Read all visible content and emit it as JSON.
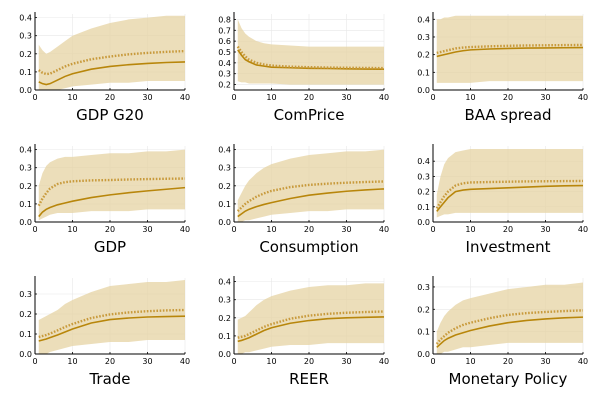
{
  "colors": {
    "band": "#e6d3a3",
    "median": "#b8860b",
    "dotted": "#c89a3c",
    "grid": "#e8e8e8",
    "axis": "#000000"
  },
  "chart_data": [
    {
      "type": "line",
      "title": "GDP G20",
      "xlim": [
        0,
        40
      ],
      "ylim": [
        0,
        0.42
      ],
      "xticks": [
        0,
        10,
        20,
        30,
        40
      ],
      "yticks": [
        0.0,
        0.1,
        0.2,
        0.3,
        0.4
      ],
      "ytick_labels": [
        "0.0",
        "0.1",
        "0.2",
        "0.3",
        "0.4"
      ],
      "x": [
        1,
        2,
        3,
        4,
        6,
        8,
        10,
        15,
        20,
        25,
        30,
        35,
        40
      ],
      "band_upper": [
        0.25,
        0.22,
        0.2,
        0.21,
        0.24,
        0.27,
        0.3,
        0.34,
        0.37,
        0.39,
        0.4,
        0.41,
        0.41
      ],
      "band_lower": [
        0.0,
        0.0,
        0.0,
        0.0,
        0.0,
        0.01,
        0.02,
        0.03,
        0.04,
        0.04,
        0.05,
        0.05,
        0.05
      ],
      "series": [
        {
          "style": "solid",
          "values": [
            0.045,
            0.035,
            0.03,
            0.035,
            0.055,
            0.075,
            0.09,
            0.115,
            0.13,
            0.14,
            0.147,
            0.152,
            0.155
          ]
        },
        {
          "style": "dotted",
          "values": [
            0.11,
            0.095,
            0.088,
            0.09,
            0.11,
            0.13,
            0.145,
            0.17,
            0.185,
            0.197,
            0.205,
            0.211,
            0.215
          ]
        }
      ]
    },
    {
      "type": "line",
      "title": "ComPrice",
      "xlim": [
        0,
        40
      ],
      "ylim": [
        0.15,
        0.85
      ],
      "xticks": [
        0,
        10,
        20,
        30,
        40
      ],
      "yticks": [
        0.2,
        0.3,
        0.4,
        0.5,
        0.6,
        0.7,
        0.8
      ],
      "ytick_labels": [
        "0.2",
        "0.3",
        "0.4",
        "0.5",
        "0.6",
        "0.7",
        "0.8"
      ],
      "x": [
        1,
        2,
        3,
        4,
        6,
        8,
        10,
        15,
        20,
        25,
        30,
        35,
        40
      ],
      "band_upper": [
        0.8,
        0.72,
        0.67,
        0.64,
        0.6,
        0.58,
        0.57,
        0.56,
        0.55,
        0.55,
        0.55,
        0.55,
        0.55
      ],
      "band_lower": [
        0.23,
        0.22,
        0.22,
        0.21,
        0.21,
        0.21,
        0.21,
        0.2,
        0.2,
        0.2,
        0.2,
        0.2,
        0.2
      ],
      "series": [
        {
          "style": "solid",
          "values": [
            0.52,
            0.47,
            0.43,
            0.41,
            0.38,
            0.37,
            0.36,
            0.355,
            0.35,
            0.348,
            0.345,
            0.343,
            0.342
          ]
        },
        {
          "style": "dotted",
          "values": [
            0.55,
            0.5,
            0.46,
            0.43,
            0.4,
            0.385,
            0.375,
            0.365,
            0.36,
            0.357,
            0.355,
            0.353,
            0.352
          ]
        }
      ]
    },
    {
      "type": "line",
      "title": "BAA spread",
      "xlim": [
        0,
        40
      ],
      "ylim": [
        0,
        0.43
      ],
      "xticks": [
        0,
        10,
        20,
        30,
        40
      ],
      "yticks": [
        0.0,
        0.1,
        0.2,
        0.3,
        0.4
      ],
      "ytick_labels": [
        "0.0",
        "0.1",
        "0.2",
        "0.3",
        "0.4"
      ],
      "x": [
        1,
        2,
        3,
        4,
        6,
        8,
        10,
        15,
        20,
        25,
        30,
        35,
        40
      ],
      "band_upper": [
        0.4,
        0.4,
        0.41,
        0.41,
        0.42,
        0.42,
        0.42,
        0.42,
        0.42,
        0.42,
        0.42,
        0.42,
        0.42
      ],
      "band_lower": [
        0.04,
        0.04,
        0.04,
        0.04,
        0.04,
        0.04,
        0.04,
        0.05,
        0.05,
        0.05,
        0.05,
        0.05,
        0.05
      ],
      "series": [
        {
          "style": "solid",
          "values": [
            0.19,
            0.195,
            0.2,
            0.205,
            0.215,
            0.222,
            0.227,
            0.232,
            0.235,
            0.237,
            0.238,
            0.239,
            0.24
          ]
        },
        {
          "style": "dotted",
          "values": [
            0.21,
            0.215,
            0.22,
            0.225,
            0.235,
            0.24,
            0.243,
            0.247,
            0.25,
            0.252,
            0.253,
            0.254,
            0.255
          ]
        }
      ]
    },
    {
      "type": "line",
      "title": "GDP",
      "xlim": [
        0,
        40
      ],
      "ylim": [
        0,
        0.42
      ],
      "xticks": [
        0,
        10,
        20,
        30,
        40
      ],
      "yticks": [
        0.0,
        0.1,
        0.2,
        0.3,
        0.4
      ],
      "ytick_labels": [
        "0.0",
        "0.1",
        "0.2",
        "0.3",
        "0.4"
      ],
      "x": [
        1,
        2,
        3,
        4,
        6,
        8,
        10,
        15,
        20,
        25,
        30,
        35,
        40
      ],
      "band_upper": [
        0.2,
        0.27,
        0.31,
        0.33,
        0.35,
        0.36,
        0.36,
        0.37,
        0.38,
        0.38,
        0.39,
        0.39,
        0.4
      ],
      "band_lower": [
        0.01,
        0.02,
        0.03,
        0.04,
        0.05,
        0.05,
        0.05,
        0.06,
        0.06,
        0.06,
        0.07,
        0.07,
        0.07
      ],
      "series": [
        {
          "style": "solid",
          "values": [
            0.03,
            0.055,
            0.07,
            0.08,
            0.095,
            0.105,
            0.115,
            0.135,
            0.15,
            0.162,
            0.172,
            0.181,
            0.19
          ]
        },
        {
          "style": "dotted",
          "values": [
            0.09,
            0.13,
            0.16,
            0.185,
            0.21,
            0.22,
            0.225,
            0.23,
            0.232,
            0.235,
            0.237,
            0.239,
            0.24
          ]
        }
      ]
    },
    {
      "type": "line",
      "title": "Consumption",
      "xlim": [
        0,
        40
      ],
      "ylim": [
        0,
        0.42
      ],
      "xticks": [
        0,
        10,
        20,
        30,
        40
      ],
      "yticks": [
        0.0,
        0.1,
        0.2,
        0.3,
        0.4
      ],
      "ytick_labels": [
        "0.0",
        "0.1",
        "0.2",
        "0.3",
        "0.4"
      ],
      "x": [
        1,
        2,
        3,
        4,
        6,
        8,
        10,
        15,
        20,
        25,
        30,
        35,
        40
      ],
      "band_upper": [
        0.12,
        0.16,
        0.2,
        0.23,
        0.27,
        0.3,
        0.32,
        0.35,
        0.37,
        0.38,
        0.39,
        0.39,
        0.4
      ],
      "band_lower": [
        0.0,
        0.0,
        0.01,
        0.01,
        0.02,
        0.03,
        0.04,
        0.05,
        0.06,
        0.06,
        0.07,
        0.07,
        0.07
      ],
      "series": [
        {
          "style": "solid",
          "values": [
            0.03,
            0.045,
            0.06,
            0.07,
            0.085,
            0.097,
            0.107,
            0.13,
            0.148,
            0.16,
            0.17,
            0.177,
            0.183
          ]
        },
        {
          "style": "dotted",
          "values": [
            0.06,
            0.08,
            0.1,
            0.115,
            0.14,
            0.158,
            0.172,
            0.193,
            0.205,
            0.212,
            0.217,
            0.221,
            0.224
          ]
        }
      ]
    },
    {
      "type": "line",
      "title": "Investment",
      "xlim": [
        0,
        40
      ],
      "ylim": [
        0,
        0.5
      ],
      "xticks": [
        0,
        10,
        20,
        30,
        40
      ],
      "yticks": [
        0.0,
        0.1,
        0.2,
        0.3,
        0.4
      ],
      "ytick_labels": [
        "0.0",
        "0.1",
        "0.2",
        "0.3",
        "0.4"
      ],
      "x": [
        1,
        2,
        3,
        4,
        6,
        8,
        10,
        15,
        20,
        25,
        30,
        35,
        40
      ],
      "band_upper": [
        0.18,
        0.3,
        0.38,
        0.42,
        0.46,
        0.47,
        0.48,
        0.48,
        0.48,
        0.48,
        0.48,
        0.48,
        0.48
      ],
      "band_lower": [
        0.03,
        0.04,
        0.05,
        0.05,
        0.06,
        0.06,
        0.06,
        0.06,
        0.06,
        0.06,
        0.06,
        0.06,
        0.06
      ],
      "series": [
        {
          "style": "solid",
          "values": [
            0.07,
            0.1,
            0.13,
            0.16,
            0.2,
            0.21,
            0.215,
            0.22,
            0.225,
            0.23,
            0.235,
            0.238,
            0.24
          ]
        },
        {
          "style": "dotted",
          "values": [
            0.09,
            0.13,
            0.17,
            0.2,
            0.24,
            0.255,
            0.26,
            0.263,
            0.265,
            0.267,
            0.268,
            0.269,
            0.27
          ]
        }
      ]
    },
    {
      "type": "line",
      "title": "Trade",
      "xlim": [
        0,
        40
      ],
      "ylim": [
        0,
        0.38
      ],
      "xticks": [
        0,
        10,
        20,
        30,
        40
      ],
      "yticks": [
        0.0,
        0.1,
        0.2,
        0.3
      ],
      "ytick_labels": [
        "0.0",
        "0.1",
        "0.2",
        "0.3"
      ],
      "x": [
        1,
        2,
        3,
        4,
        6,
        8,
        10,
        15,
        20,
        25,
        30,
        35,
        40
      ],
      "band_upper": [
        0.17,
        0.18,
        0.19,
        0.2,
        0.22,
        0.25,
        0.27,
        0.31,
        0.34,
        0.35,
        0.36,
        0.36,
        0.37
      ],
      "band_lower": [
        0.0,
        0.0,
        0.0,
        0.01,
        0.02,
        0.03,
        0.04,
        0.05,
        0.06,
        0.06,
        0.07,
        0.07,
        0.07
      ],
      "series": [
        {
          "style": "solid",
          "values": [
            0.065,
            0.07,
            0.075,
            0.082,
            0.095,
            0.11,
            0.125,
            0.155,
            0.172,
            0.18,
            0.185,
            0.187,
            0.189
          ]
        },
        {
          "style": "dotted",
          "values": [
            0.085,
            0.09,
            0.095,
            0.102,
            0.118,
            0.135,
            0.15,
            0.18,
            0.198,
            0.208,
            0.214,
            0.218,
            0.22
          ]
        }
      ]
    },
    {
      "type": "line",
      "title": "REER",
      "xlim": [
        0,
        40
      ],
      "ylim": [
        0,
        0.42
      ],
      "xticks": [
        0,
        10,
        20,
        30,
        40
      ],
      "yticks": [
        0.0,
        0.1,
        0.2,
        0.3,
        0.4
      ],
      "ytick_labels": [
        "0.0",
        "0.1",
        "0.2",
        "0.3",
        "0.4"
      ],
      "x": [
        1,
        2,
        3,
        4,
        6,
        8,
        10,
        15,
        20,
        25,
        30,
        35,
        40
      ],
      "band_upper": [
        0.19,
        0.2,
        0.21,
        0.23,
        0.27,
        0.3,
        0.32,
        0.35,
        0.37,
        0.38,
        0.38,
        0.39,
        0.39
      ],
      "band_lower": [
        0.0,
        0.0,
        0.01,
        0.01,
        0.02,
        0.03,
        0.04,
        0.05,
        0.05,
        0.06,
        0.06,
        0.06,
        0.06
      ],
      "series": [
        {
          "style": "solid",
          "values": [
            0.07,
            0.075,
            0.082,
            0.09,
            0.11,
            0.13,
            0.145,
            0.17,
            0.185,
            0.195,
            0.2,
            0.203,
            0.205
          ]
        },
        {
          "style": "dotted",
          "values": [
            0.09,
            0.095,
            0.1,
            0.11,
            0.13,
            0.15,
            0.165,
            0.195,
            0.212,
            0.222,
            0.228,
            0.232,
            0.235
          ]
        }
      ]
    },
    {
      "type": "line",
      "title": "Monetary Policy",
      "xlim": [
        0,
        40
      ],
      "ylim": [
        0,
        0.34
      ],
      "xticks": [
        0,
        10,
        20,
        30,
        40
      ],
      "yticks": [
        0.0,
        0.1,
        0.2,
        0.3
      ],
      "ytick_labels": [
        "0.0",
        "0.1",
        "0.2",
        "0.3"
      ],
      "x": [
        1,
        2,
        3,
        4,
        6,
        8,
        10,
        15,
        20,
        25,
        30,
        35,
        40
      ],
      "band_upper": [
        0.1,
        0.14,
        0.17,
        0.19,
        0.22,
        0.24,
        0.25,
        0.27,
        0.29,
        0.3,
        0.31,
        0.31,
        0.32
      ],
      "band_lower": [
        0.0,
        0.0,
        0.01,
        0.01,
        0.02,
        0.03,
        0.03,
        0.04,
        0.05,
        0.05,
        0.05,
        0.05,
        0.05
      ],
      "series": [
        {
          "style": "solid",
          "values": [
            0.03,
            0.045,
            0.06,
            0.07,
            0.085,
            0.095,
            0.105,
            0.125,
            0.14,
            0.15,
            0.157,
            0.162,
            0.165
          ]
        },
        {
          "style": "dotted",
          "values": [
            0.045,
            0.065,
            0.08,
            0.095,
            0.115,
            0.13,
            0.14,
            0.16,
            0.175,
            0.183,
            0.188,
            0.192,
            0.195
          ]
        }
      ]
    }
  ]
}
